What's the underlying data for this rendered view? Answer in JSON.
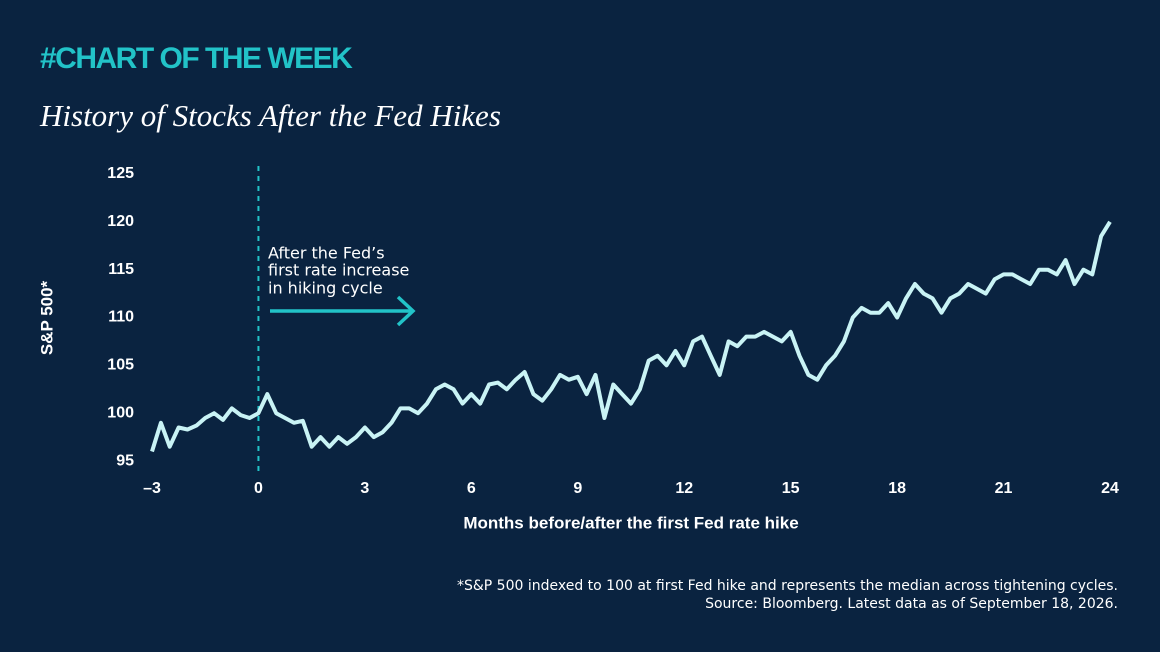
{
  "chart_data": {
    "type": "line",
    "kicker": "#CHART OF THE WEEK",
    "title": "History of Stocks After the Fed Hikes",
    "x_label": "Months before/after the first Fed rate hike",
    "y_label": "S&P 500*",
    "annotation": [
      "After the Fed’s",
      "first rate increase",
      "in hiking cycle"
    ],
    "footnotes": [
      "*S&P 500 indexed to 100 at first Fed hike and represents the median across tightening cycles.",
      "Source: Bloomberg. Latest data as of September 18, 2026."
    ],
    "color": "#c9f3f5",
    "accent_color": "#22c3c8",
    "vline_x": 0,
    "xlim": [
      -3,
      24
    ],
    "ylim": [
      94,
      126
    ],
    "xticks": [
      {
        "value": -3,
        "label": "–3"
      },
      0,
      3,
      6,
      9,
      12,
      15,
      18,
      21,
      24
    ],
    "yticks": [
      95,
      100,
      105,
      110,
      115,
      120,
      125
    ],
    "x": [
      -3,
      -2.75,
      -2.5,
      -2.25,
      -2,
      -1.75,
      -1.5,
      -1.25,
      -1,
      -0.75,
      -0.5,
      -0.25,
      0,
      0.25,
      0.5,
      0.75,
      1,
      1.25,
      1.5,
      1.75,
      2,
      2.25,
      2.5,
      2.75,
      3,
      3.25,
      3.5,
      3.75,
      4,
      4.25,
      4.5,
      4.75,
      5,
      5.25,
      5.5,
      5.75,
      6,
      6.25,
      6.5,
      6.75,
      7,
      7.25,
      7.5,
      7.75,
      8,
      8.25,
      8.5,
      8.75,
      9,
      9.25,
      9.5,
      9.75,
      10,
      10.25,
      10.5,
      10.75,
      11,
      11.25,
      11.5,
      11.75,
      12,
      12.25,
      12.5,
      12.75,
      13,
      13.25,
      13.5,
      13.75,
      14,
      14.25,
      14.5,
      14.75,
      15,
      15.25,
      15.5,
      15.75,
      16,
      16.25,
      16.5,
      16.75,
      17,
      17.25,
      17.5,
      17.75,
      18,
      18.25,
      18.5,
      18.75,
      19,
      19.25,
      19.5,
      19.75,
      20,
      20.25,
      20.5,
      20.75,
      21,
      21.25,
      21.5,
      21.75,
      22,
      22.25,
      22.5,
      22.75,
      23,
      23.25,
      23.5,
      23.75,
      24
    ],
    "values": [
      96,
      99,
      96.5,
      98.5,
      98.3,
      98.7,
      99.5,
      100,
      99.3,
      100.5,
      99.8,
      99.5,
      100,
      102,
      100,
      99.5,
      99,
      99.2,
      96.5,
      97.5,
      96.5,
      97.5,
      96.8,
      97.5,
      98.5,
      97.5,
      98,
      99,
      100.5,
      100.5,
      100,
      101,
      102.5,
      103,
      102.5,
      101,
      102,
      101,
      103,
      103.2,
      102.5,
      103.5,
      104.3,
      102,
      101.3,
      102.5,
      104,
      103.5,
      103.8,
      102,
      104,
      99.5,
      103,
      102,
      101,
      102.5,
      105.5,
      106,
      105,
      106.5,
      105,
      107.5,
      108,
      106,
      104,
      107.5,
      107,
      108,
      108,
      108.5,
      108,
      107.5,
      108.5,
      106,
      104,
      103.5,
      105,
      106,
      107.5,
      110,
      111,
      110.5,
      110.5,
      111.5,
      110,
      112,
      113.5,
      112.5,
      112,
      110.5,
      112,
      112.5,
      113.5,
      113,
      112.5,
      114,
      114.5,
      114.5,
      114,
      113.5,
      115,
      115,
      114.5,
      116,
      113.5,
      115,
      114.5,
      118.5,
      120
    ]
  }
}
